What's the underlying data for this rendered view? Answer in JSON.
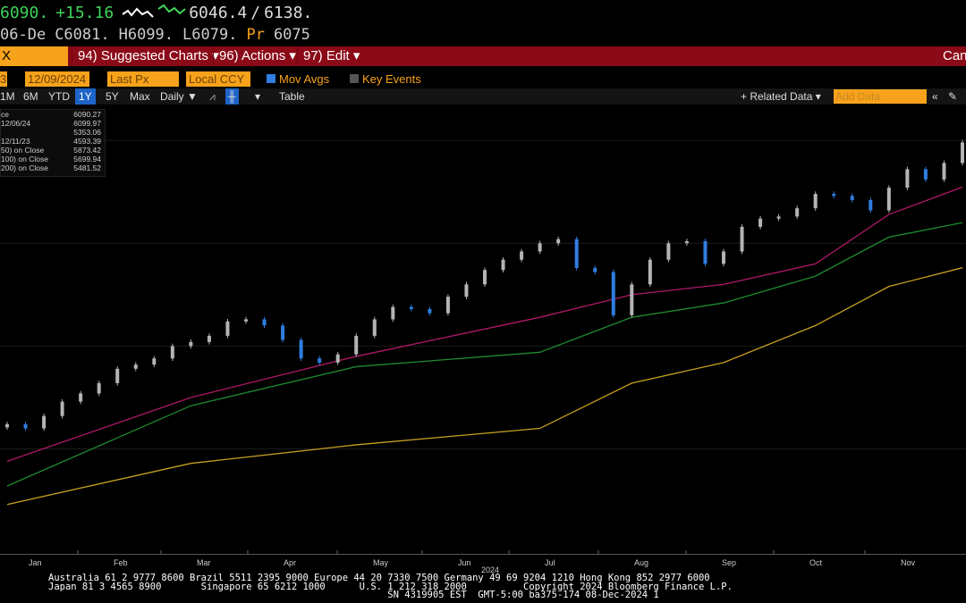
{
  "quote": {
    "last": "6090.",
    "change": "+15.16",
    "range_low": "6046.4",
    "range_sep": "/",
    "range_high": "6138.",
    "date": "06-De",
    "open": "C6081.",
    "high": "H6099.",
    "low": "L6079.",
    "prev_label": "Pr",
    "prev": "6075"
  },
  "menu": {
    "ticker": "X",
    "suggested": "94) Suggested Charts ▾",
    "actions": "96) Actions ▾",
    "edit": "97) Edit ▾",
    "right": "Can"
  },
  "toolbar": {
    "start_suffix": "3",
    "end_date": "12/09/2024",
    "field": "Last Px",
    "currency": "Local CCY",
    "mov_avgs": "Mov Avgs",
    "mov_avgs_checked": true,
    "key_events": "Key Events",
    "key_events_checked": false,
    "related": "+ Related Data ▾",
    "add_data_placeholder": "Add Data",
    "collapse": "«"
  },
  "ranges": {
    "items": [
      "1M",
      "6M",
      "YTD",
      "1Y",
      "5Y",
      "Max"
    ],
    "selected": "1Y",
    "freq": "Daily ▼",
    "table": "Table"
  },
  "legend": {
    "rows": [
      {
        "label": "ce",
        "value": "6090.27"
      },
      {
        "label": "12/06/24",
        "value": "6099.97"
      },
      {
        "label": "",
        "value": "5353.06"
      },
      {
        "label": "12/11/23",
        "value": "4593.39"
      },
      {
        "label": "50)  on Close",
        "value": "5873.42"
      },
      {
        "label": "100)  on Close",
        "value": "5699.94"
      },
      {
        "label": "200)  on Close",
        "value": "5481.52"
      }
    ]
  },
  "colors": {
    "up": "#b4b4b4",
    "down": "#2f7ee0",
    "ma50": "#b0186a",
    "ma100": "#1f8a2e",
    "ma200": "#c8a020",
    "accent": "#f7a21b",
    "menubar": "#8b0a17",
    "quote_green": "#3fd35a"
  },
  "chart_data": {
    "type": "candlestick",
    "x_start": "2023-12-15",
    "x_step": "weekly",
    "xtick_labels": [
      "Jan",
      "Feb",
      "Mar",
      "Apr",
      "May",
      "Jun",
      "Jul",
      "Aug",
      "Sep",
      "Oct",
      "Nov"
    ],
    "year_label": "2024",
    "ylim": [
      4090,
      6270
    ],
    "grid": true,
    "close": [
      4720,
      4700,
      4760,
      4830,
      4870,
      4920,
      4990,
      5010,
      5040,
      5100,
      5120,
      5150,
      5220,
      5230,
      5200,
      5130,
      5040,
      5020,
      5060,
      5150,
      5230,
      5290,
      5280,
      5260,
      5340,
      5400,
      5470,
      5520,
      5560,
      5600,
      5620,
      5480,
      5460,
      5250,
      5400,
      5520,
      5600,
      5610,
      5500,
      5560,
      5680,
      5720,
      5730,
      5770,
      5840,
      5830,
      5810,
      5760,
      5870,
      5960,
      5910,
      5990,
      6090
    ],
    "moving_averages": [
      {
        "period": 50,
        "at_index": [
          0,
          10,
          19,
          29,
          34,
          39,
          44,
          48,
          52
        ],
        "values": [
          4540,
          4850,
          5050,
          5240,
          5350,
          5400,
          5500,
          5740,
          5873
        ]
      },
      {
        "period": 100,
        "at_index": [
          0,
          10,
          19,
          29,
          34,
          39,
          44,
          48,
          52
        ],
        "values": [
          4420,
          4810,
          5000,
          5070,
          5240,
          5310,
          5440,
          5630,
          5700
        ]
      },
      {
        "period": 200,
        "at_index": [
          0,
          10,
          19,
          29,
          34,
          39,
          44,
          48,
          52
        ],
        "values": [
          4330,
          4530,
          4620,
          4700,
          4920,
          5020,
          5200,
          5390,
          5481
        ]
      }
    ]
  },
  "footer": {
    "line1": "Australia 61 2 9777 8600 Brazil 5511 2395 9000 Europe 44 20 7330 7500 Germany 49 69 9204 1210 Hong Kong 852 2977 6000",
    "line2": "Japan 81 3 4565 8900       Singapore 65 6212 1000      U.S. 1 212 318 2000          Copyright 2024 Bloomberg Finance L.P.",
    "line3": "                                                            SN 4319905 EST  GMT-5:00 ba375-174 08-Dec-2024 1"
  }
}
